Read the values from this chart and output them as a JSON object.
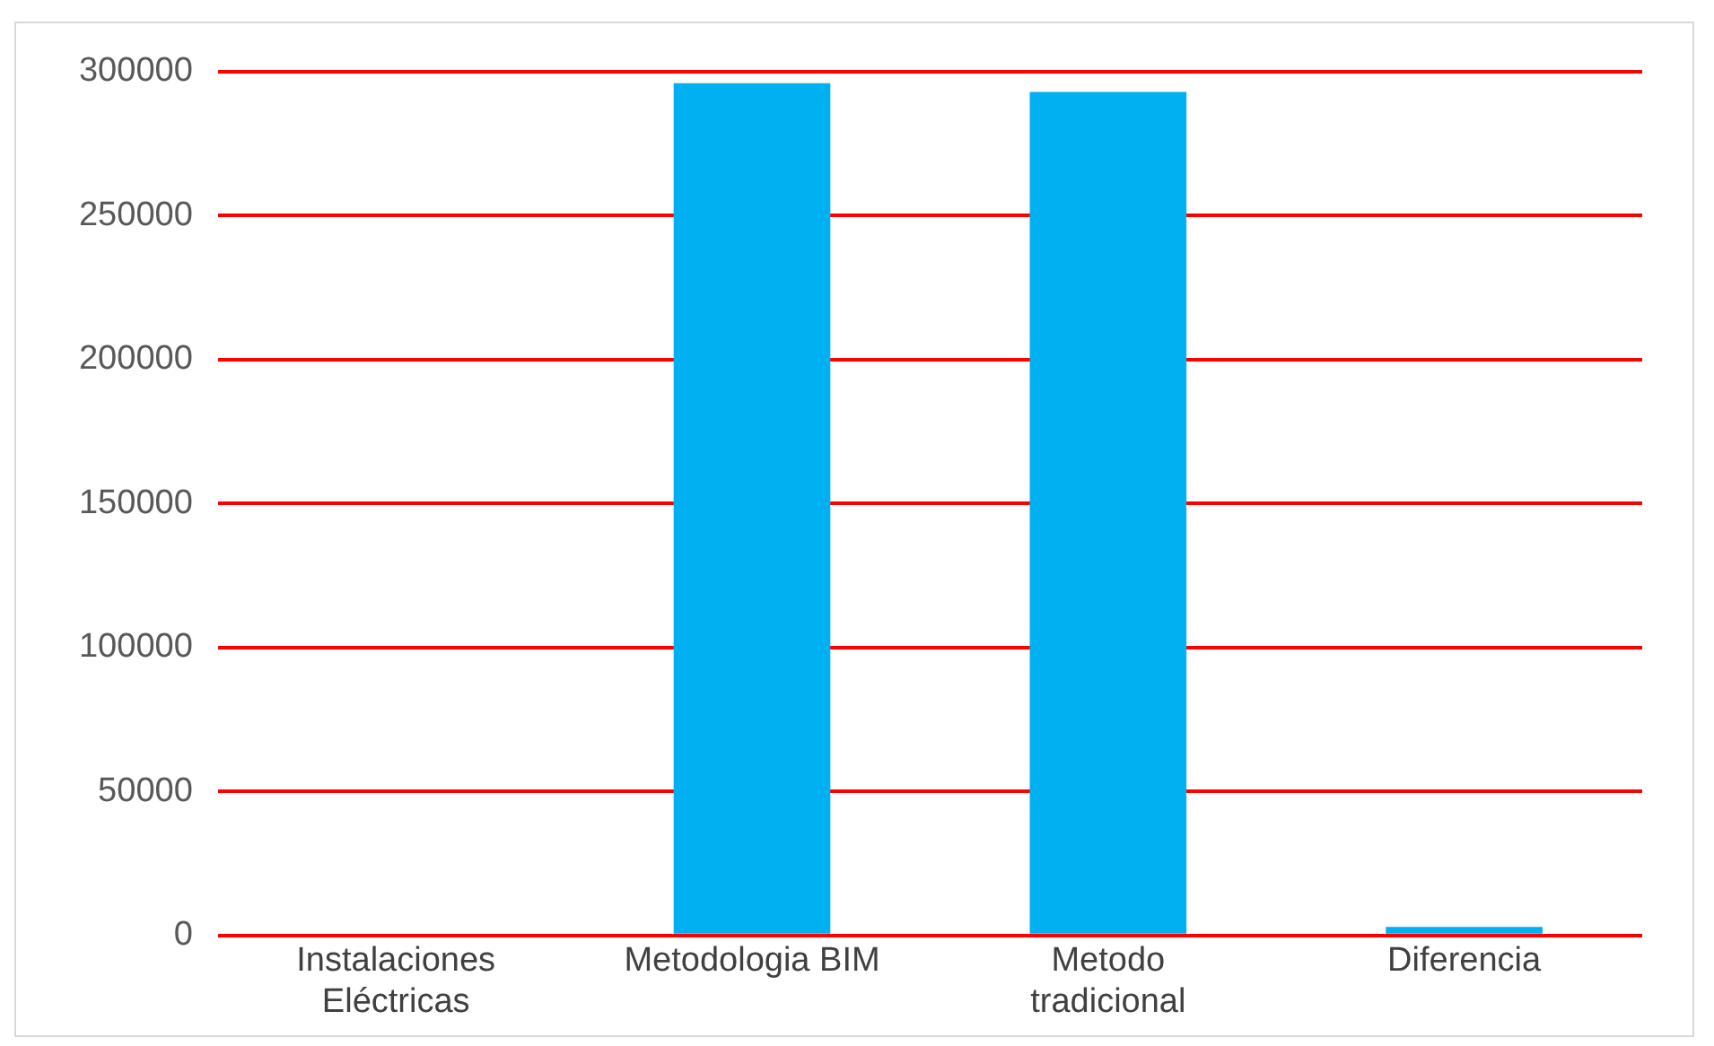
{
  "chart_data": {
    "type": "bar",
    "categories": [
      "Instalaciones Eléctricas",
      "Metodologia BIM",
      "Metodo tradicional",
      "Diferencia"
    ],
    "values": [
      null,
      296000,
      293000,
      3000
    ],
    "color": "#00b0f0",
    "ylim": [
      0,
      300000
    ],
    "yticks": [
      0,
      50000,
      100000,
      150000,
      200000,
      250000,
      300000
    ],
    "grid": "y",
    "legend": false
  }
}
